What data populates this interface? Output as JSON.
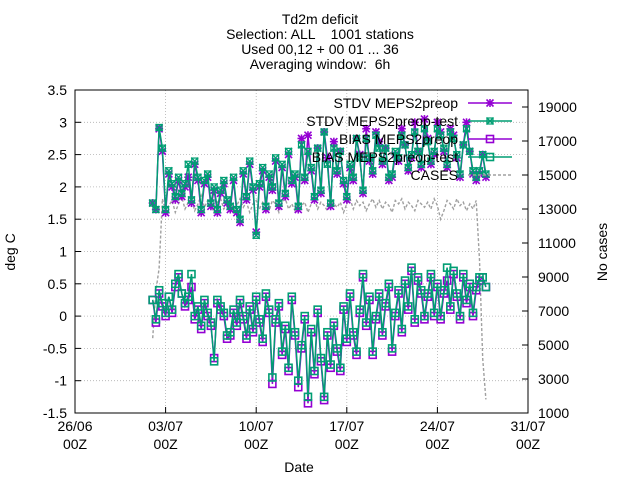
{
  "chart_data": {
    "type": "line",
    "title_lines": [
      "Td2m deficit",
      "Selection: ALL    1001 stations",
      "Used 00,12 + 00 01 ... 36",
      "Averaging window:  6h"
    ],
    "xlabel": "Date",
    "ylabel": "deg C",
    "y2label": "No cases",
    "x_range": [
      "2024-06-26T00:00",
      "2024-07-31T00:00"
    ],
    "x_ticks": [
      {
        "date": "2024-06-26T00:00",
        "line1": "26/06",
        "line2": "00Z"
      },
      {
        "date": "2024-07-03T00:00",
        "line1": "03/07",
        "line2": "00Z"
      },
      {
        "date": "2024-07-10T00:00",
        "line1": "10/07",
        "line2": "00Z"
      },
      {
        "date": "2024-07-17T00:00",
        "line1": "17/07",
        "line2": "00Z"
      },
      {
        "date": "2024-07-24T00:00",
        "line1": "24/07",
        "line2": "00Z"
      },
      {
        "date": "2024-07-31T00:00",
        "line1": "31/07",
        "line2": "00Z"
      }
    ],
    "ylim": [
      -1.5,
      3.5
    ],
    "y_ticks": [
      "-1.5",
      "-1",
      "-0.5",
      "0",
      "0.5",
      "1",
      "1.5",
      "2",
      "2.5",
      "3",
      "3.5"
    ],
    "y2lim": [
      1000,
      20000
    ],
    "y2_ticks": [
      "1000",
      "3000",
      "5000",
      "7000",
      "9000",
      "11000",
      "13000",
      "15000",
      "17000",
      "19000"
    ],
    "grid": true,
    "legend_position": "top-right",
    "x_start": "2024-07-02T00:00",
    "x_step_hours": 6,
    "series": [
      {
        "name": "STDV MEPS2preop",
        "axis": "y1",
        "color": "#9400d3",
        "marker": "star",
        "style": "solid",
        "values": [
          1.75,
          1.65,
          2.9,
          2.55,
          1.6,
          2.2,
          2.0,
          1.8,
          2.1,
          1.85,
          2.0,
          2.15,
          1.75,
          2.35,
          2.1,
          1.6,
          2.05,
          2.15,
          1.7,
          1.95,
          1.6,
          1.9,
          2.05,
          1.75,
          1.65,
          2.1,
          1.6,
          1.45,
          2.2,
          1.8,
          2.35,
          1.95,
          1.3,
          2.0,
          2.25,
          1.65,
          2.15,
          1.95,
          2.4,
          1.7,
          2.3,
          1.85,
          2.5,
          2.05,
          2.15,
          1.65,
          2.75,
          2.1,
          2.8,
          2.25,
          1.8,
          2.6,
          1.9,
          2.85,
          2.45,
          1.7,
          2.7,
          2.2,
          2.55,
          2.05,
          1.8,
          2.3,
          2.1,
          2.75,
          2.5,
          1.9,
          2.9,
          2.4,
          2.2,
          2.85,
          2.7,
          2.35,
          2.6,
          2.1,
          2.15,
          2.5,
          2.4,
          2.9,
          2.65,
          2.25,
          2.45,
          3.0,
          2.55,
          2.3,
          3.05,
          2.75,
          2.35,
          2.5,
          3.0,
          2.85,
          2.55,
          2.3,
          2.9,
          2.8,
          2.45,
          2.15,
          2.65,
          3.0,
          2.55,
          2.2,
          2.1,
          2.2,
          2.5,
          2.15
        ]
      },
      {
        "name": "STDV MEPS2preop-test",
        "axis": "y1",
        "color": "#009e73",
        "marker": "x-square",
        "style": "solid",
        "values": [
          1.75,
          1.65,
          2.92,
          2.6,
          1.65,
          2.25,
          2.05,
          1.85,
          2.15,
          1.9,
          2.05,
          2.35,
          1.8,
          2.4,
          2.15,
          1.65,
          2.1,
          2.2,
          1.75,
          2.0,
          1.65,
          1.95,
          2.1,
          1.8,
          1.7,
          2.15,
          1.65,
          1.5,
          2.25,
          1.85,
          2.4,
          2.0,
          1.25,
          2.05,
          2.3,
          1.7,
          2.2,
          2.0,
          2.45,
          1.75,
          2.35,
          1.9,
          2.55,
          2.1,
          2.2,
          1.7,
          2.65,
          2.15,
          2.55,
          2.3,
          1.85,
          2.6,
          1.95,
          2.85,
          2.35,
          1.75,
          2.6,
          2.25,
          2.55,
          2.1,
          1.85,
          2.35,
          2.15,
          2.75,
          2.45,
          1.95,
          2.75,
          2.45,
          2.25,
          2.8,
          2.6,
          2.4,
          2.6,
          2.15,
          2.2,
          2.55,
          2.45,
          2.8,
          2.65,
          2.3,
          2.5,
          2.85,
          2.55,
          2.35,
          2.9,
          2.7,
          2.4,
          2.55,
          2.9,
          2.8,
          2.6,
          2.35,
          2.85,
          2.75,
          2.5,
          2.2,
          2.65,
          2.9,
          2.55,
          2.25,
          2.15,
          2.25,
          2.5,
          2.2
        ]
      },
      {
        "name": "BIAS MEPS2preop",
        "axis": "y1",
        "color": "#9400d3",
        "marker": "square",
        "style": "solid",
        "values": [
          0.25,
          -0.1,
          0.35,
          0.15,
          0.0,
          0.3,
          0.05,
          0.45,
          0.6,
          0.35,
          0.15,
          0.25,
          0.45,
          -0.05,
          0.1,
          -0.2,
          0.2,
          0.0,
          -0.15,
          -0.65,
          0.2,
          0.1,
          0.0,
          -0.35,
          -0.3,
          0.05,
          -0.15,
          0.2,
          -0.05,
          -0.35,
          0.1,
          -0.25,
          0.25,
          -0.1,
          -0.4,
          0.3,
          0.05,
          -1.05,
          -0.1,
          0.15,
          -0.6,
          -0.2,
          -0.85,
          0.25,
          -0.3,
          -1.1,
          -0.5,
          -0.05,
          -1.35,
          -0.25,
          -0.9,
          0.05,
          -0.7,
          -1.3,
          -0.3,
          -0.8,
          -0.15,
          -0.55,
          -0.85,
          0.1,
          -0.4,
          0.3,
          -0.3,
          -0.6,
          0.05,
          0.6,
          -0.15,
          0.25,
          -0.6,
          -0.05,
          0.3,
          -0.3,
          0.15,
          0.45,
          -0.55,
          0.0,
          0.35,
          -0.25,
          0.5,
          0.1,
          0.7,
          -0.1,
          0.55,
          0.35,
          -0.05,
          0.3,
          0.6,
          0.0,
          0.45,
          -0.05,
          0.35,
          0.55,
          0.1,
          0.65,
          0.3,
          -0.05,
          0.6,
          0.2,
          0.45,
          0.0,
          0.4,
          0.55,
          0.6,
          0.45
        ]
      },
      {
        "name": "BIAS MEPS2preop-test",
        "axis": "y1",
        "color": "#009e73",
        "marker": "square",
        "style": "solid",
        "values": [
          0.25,
          -0.05,
          0.4,
          0.2,
          0.05,
          0.3,
          0.1,
          0.5,
          0.65,
          0.35,
          0.2,
          0.3,
          0.65,
          0.0,
          0.15,
          -0.15,
          0.25,
          0.05,
          -0.1,
          -0.7,
          0.25,
          0.15,
          0.05,
          -0.3,
          -0.25,
          0.1,
          -0.1,
          0.25,
          0.0,
          -0.3,
          0.15,
          -0.2,
          0.3,
          -0.05,
          -0.35,
          0.35,
          0.1,
          -0.95,
          -0.05,
          0.2,
          -0.55,
          -0.15,
          -0.8,
          0.3,
          -0.25,
          -1.0,
          -0.45,
          0.0,
          -1.25,
          -0.2,
          -0.85,
          0.1,
          -0.65,
          -1.25,
          -0.25,
          -0.75,
          -0.1,
          -0.5,
          -0.8,
          0.15,
          -0.35,
          0.35,
          -0.25,
          -0.55,
          0.1,
          0.65,
          -0.1,
          0.3,
          -0.55,
          0.0,
          0.35,
          -0.25,
          0.2,
          0.5,
          -0.5,
          0.05,
          0.4,
          -0.2,
          0.55,
          0.15,
          0.75,
          -0.05,
          0.6,
          0.4,
          0.0,
          0.35,
          0.65,
          0.05,
          0.5,
          0.0,
          0.4,
          0.75,
          0.15,
          0.7,
          0.35,
          0.0,
          0.65,
          0.25,
          0.5,
          0.05,
          0.45,
          0.6,
          0.6,
          0.45
        ]
      },
      {
        "name": "CASES",
        "axis": "y2",
        "color": "#a0a0a0",
        "marker": "none",
        "style": "dashed",
        "values": [
          5400,
          8200,
          9500,
          13600,
          12900,
          13200,
          13500,
          12800,
          13300,
          13700,
          13000,
          13400,
          13600,
          12900,
          13300,
          13800,
          13100,
          13500,
          13200,
          12800,
          13400,
          13600,
          13000,
          13300,
          13500,
          12900,
          13200,
          13600,
          13100,
          13400,
          12800,
          13300,
          13500,
          13000,
          13400,
          13200,
          12900,
          13500,
          13300,
          12800,
          13400,
          13600,
          13000,
          13300,
          12900,
          13500,
          13200,
          13400,
          12800,
          13300,
          13600,
          13000,
          13400,
          13200,
          12900,
          13500,
          13300,
          13100,
          13400,
          12800,
          13300,
          13600,
          13000,
          13500,
          13200,
          13400,
          12900,
          13300,
          13600,
          13100,
          13500,
          13000,
          13400,
          13200,
          12800,
          13500,
          13300,
          13600,
          13000,
          13400,
          13200,
          12900,
          13500,
          13300,
          13100,
          13400,
          13000,
          13600,
          13200,
          12400,
          12900,
          13500,
          13300,
          13000,
          13600,
          13200,
          13400,
          12900,
          13300,
          13000,
          13500,
          10000,
          4200,
          1800
        ]
      }
    ]
  }
}
